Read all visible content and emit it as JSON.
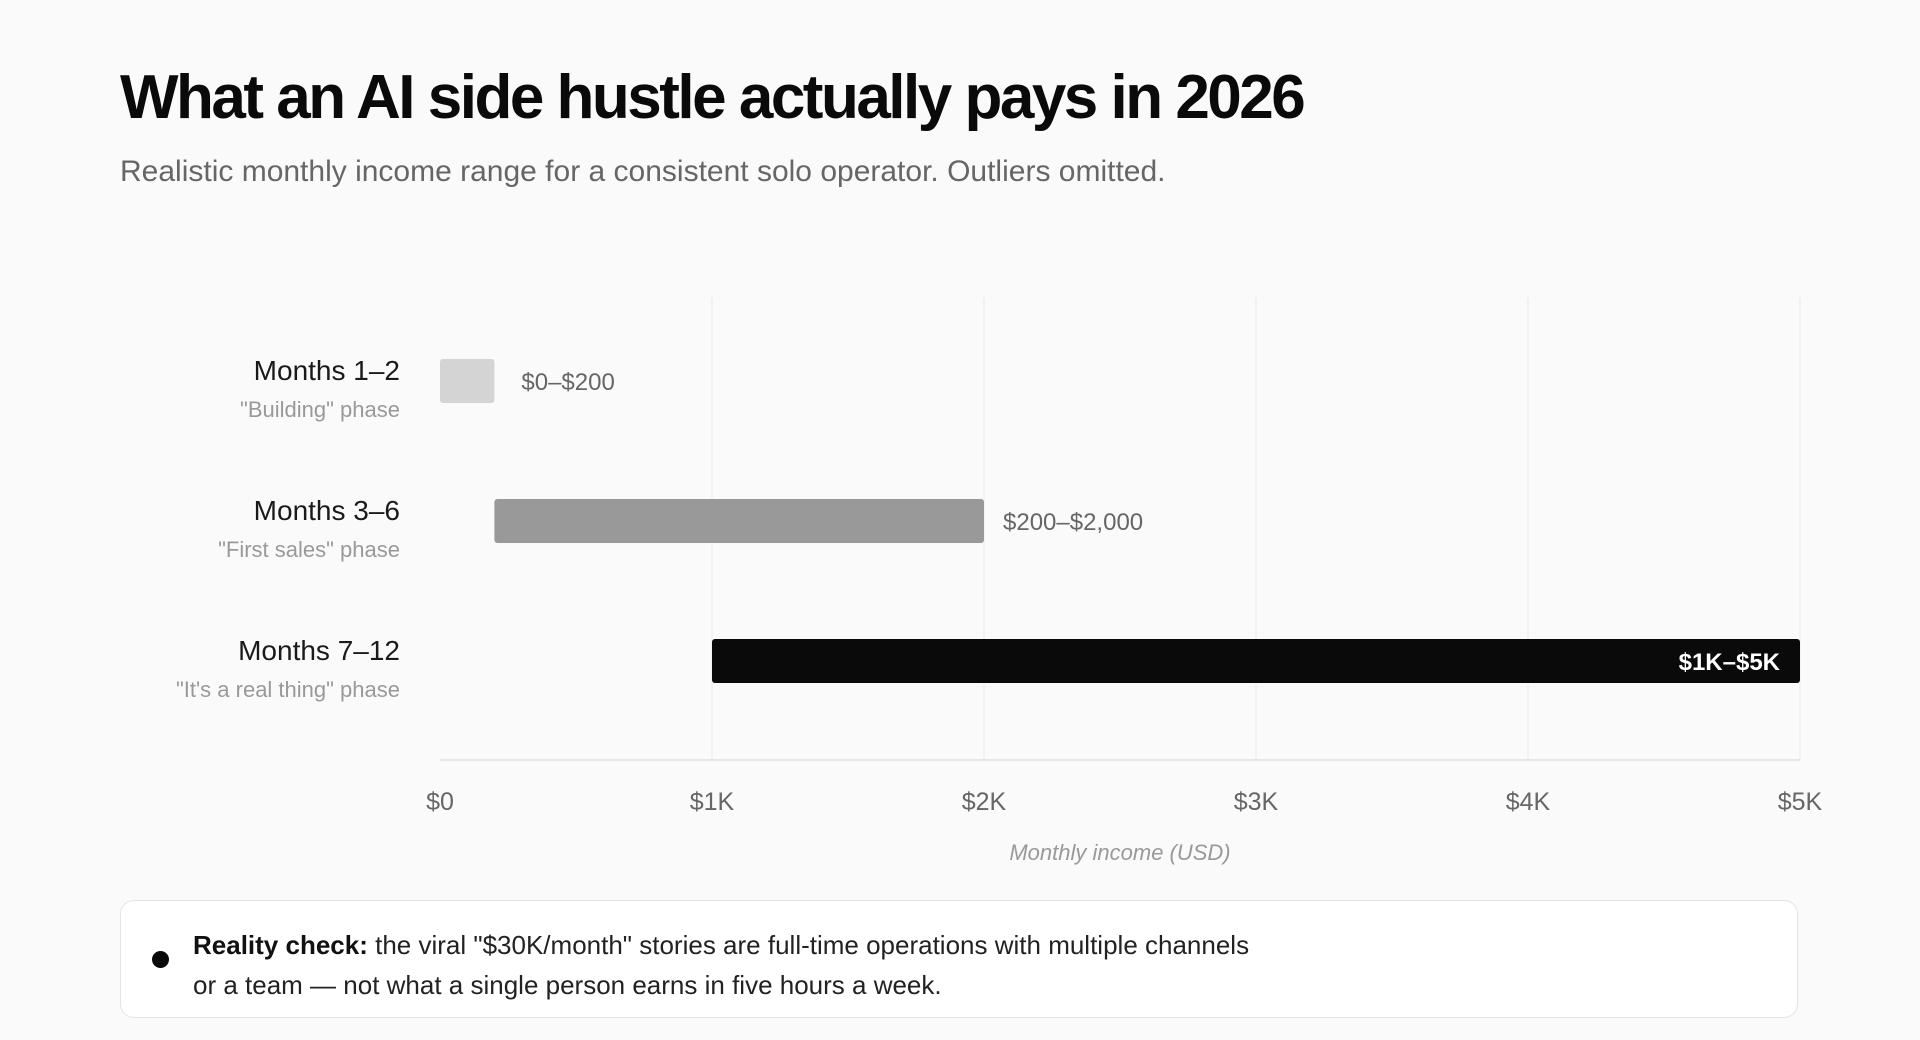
{
  "header": {
    "title": "What an AI side hustle actually pays in 2026",
    "subtitle": "Realistic monthly income range for a consistent solo operator. Outliers omitted."
  },
  "chart_data": {
    "type": "bar",
    "orientation": "horizontal",
    "subtype": "range",
    "categories": [
      "Months 1–2",
      "Months 3–6",
      "Months 7–12"
    ],
    "sublabels": [
      "\"Building\" phase",
      "\"First sales\" phase",
      "\"It's a real thing\" phase"
    ],
    "ranges": [
      [
        0,
        200
      ],
      [
        200,
        2000
      ],
      [
        1000,
        5000
      ]
    ],
    "range_labels": [
      "$0–$200",
      "$200–$2,000",
      "$1K–$5K"
    ],
    "colors": [
      "#d4d4d4",
      "#999999",
      "#0a0a0a"
    ],
    "xlabel": "Monthly income (USD)",
    "xlim": [
      0,
      5000
    ],
    "xticks": [
      0,
      1000,
      2000,
      3000,
      4000,
      5000
    ],
    "xtick_labels": [
      "$0",
      "$1K",
      "$2K",
      "$3K",
      "$4K",
      "$5K"
    ],
    "grid": "vertical"
  },
  "callout": {
    "label": "Reality check:",
    "text": " the viral \"$30K/month\" stories are full-time operations with multiple channels or a team — not what a single person earns in five hours a week."
  }
}
